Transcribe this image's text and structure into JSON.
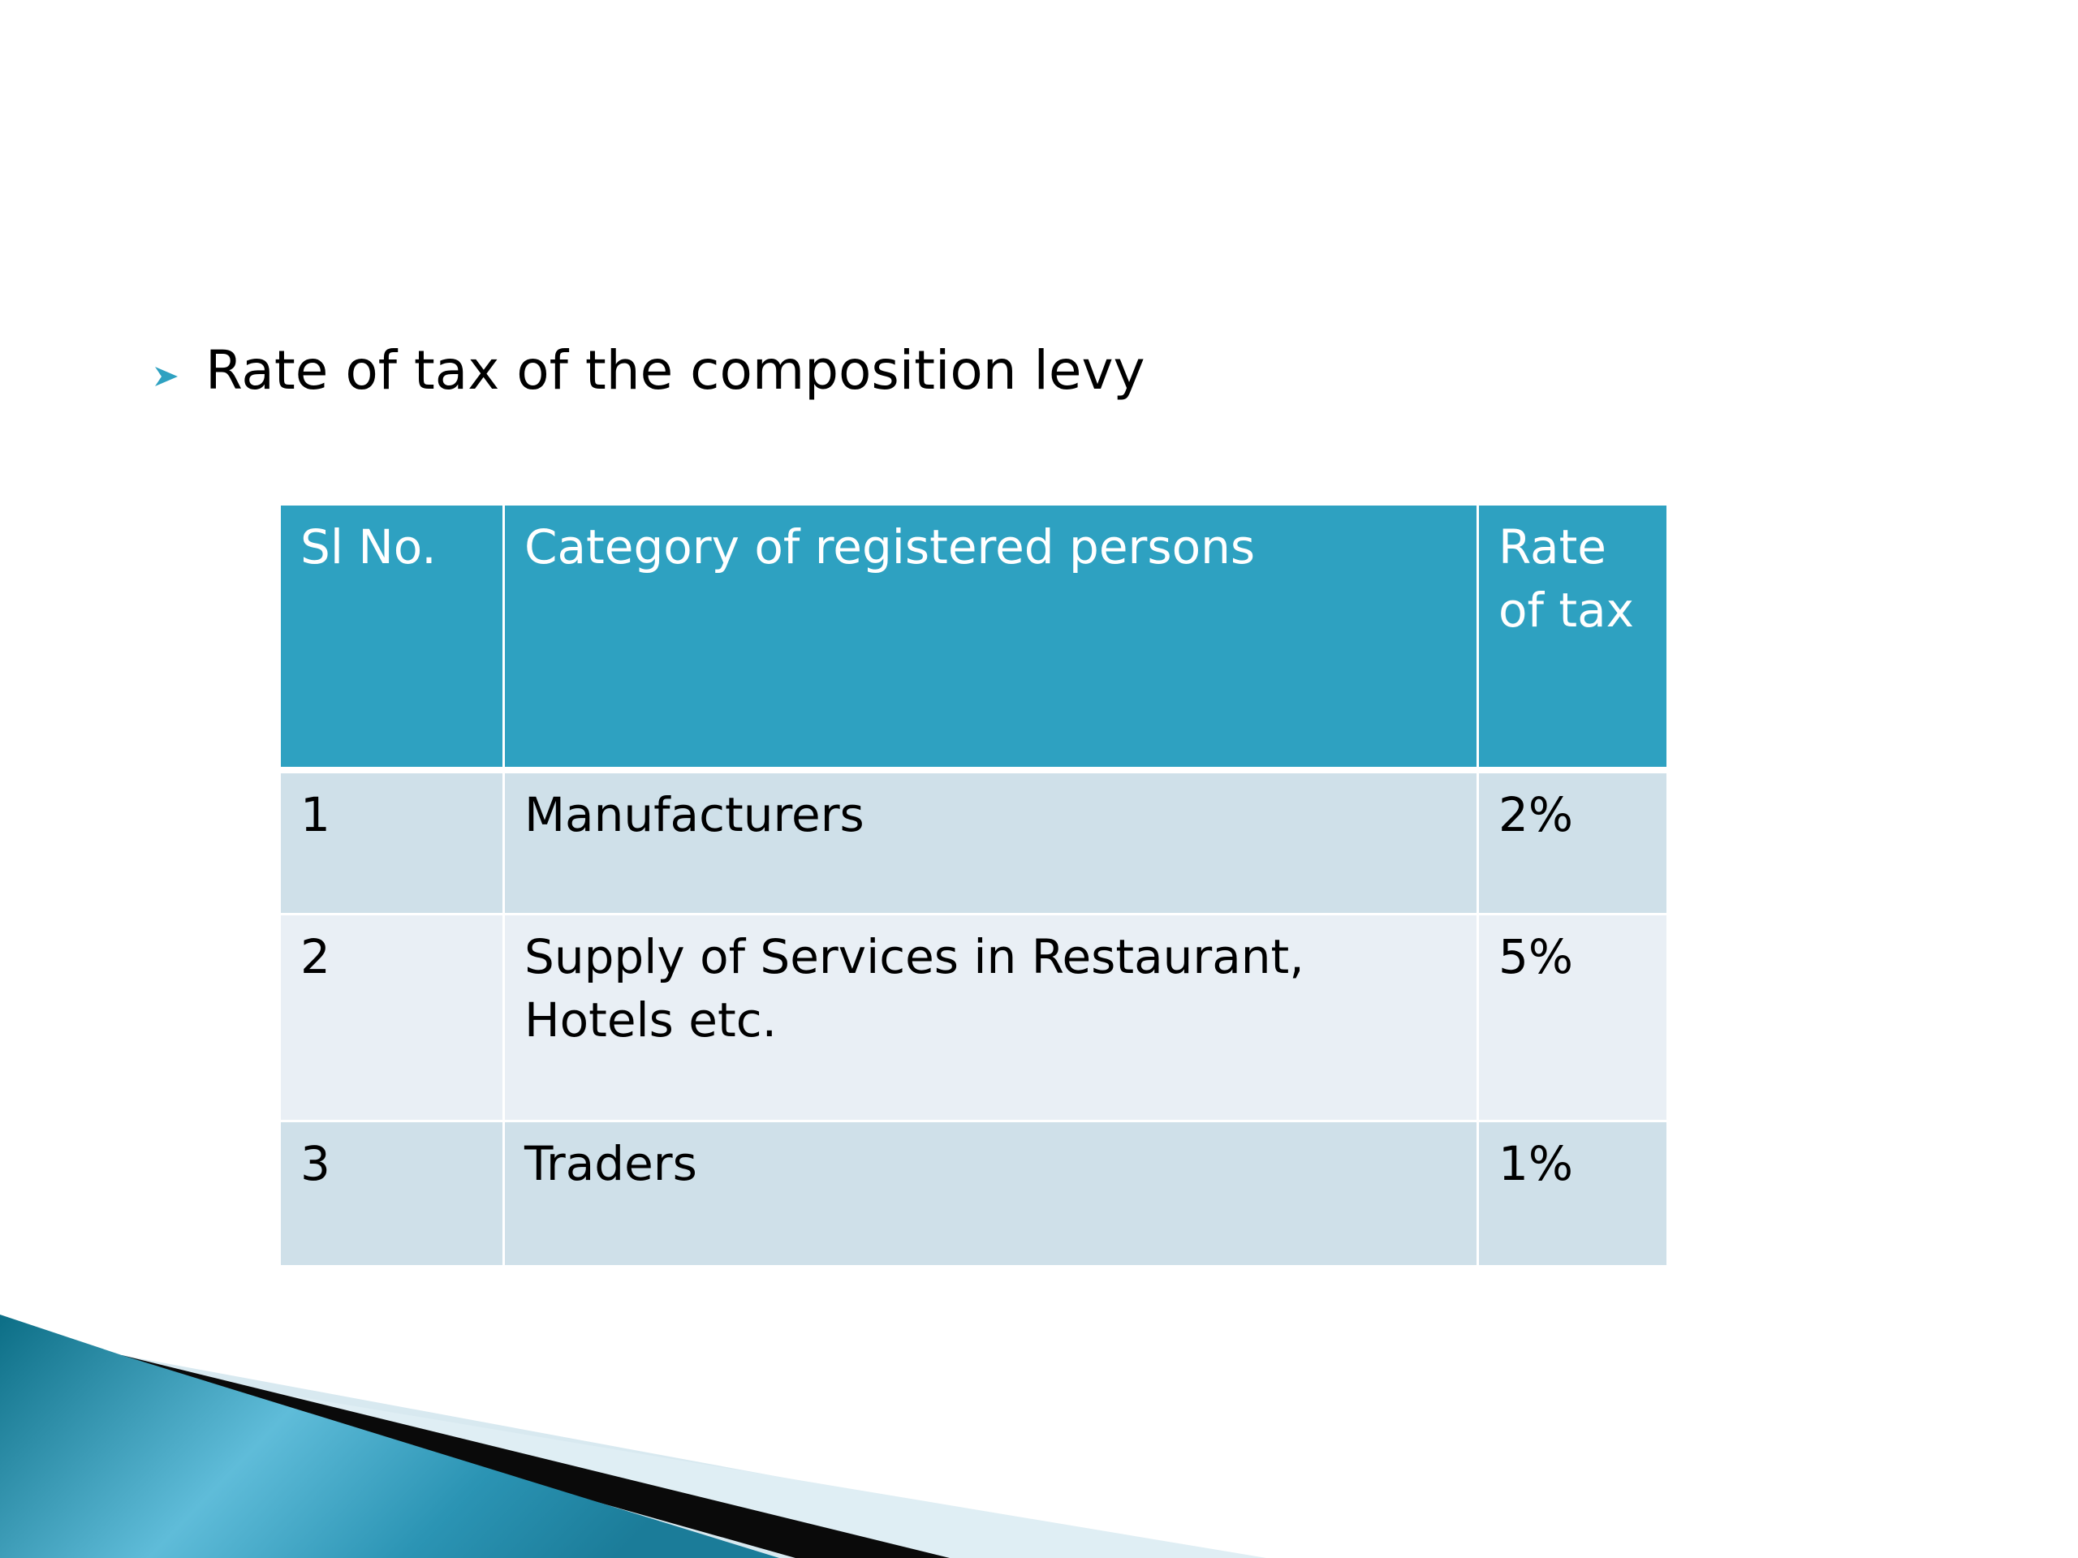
{
  "slide": {
    "bullet_icon": "arrow-bullet-icon",
    "heading": "Rate of tax of the composition levy"
  },
  "table": {
    "headers": [
      "Sl No.",
      "Category of registered persons",
      "Rate of tax"
    ],
    "rows": [
      [
        "1",
        "Manufacturers",
        "2%"
      ],
      [
        "2",
        "Supply of Services in Restaurant, Hotels etc.",
        "5%"
      ],
      [
        "3",
        "Traders",
        "1%"
      ]
    ]
  },
  "colors": {
    "header_fill": "#2ea1c1",
    "row_odd_fill": "#cfe0e9",
    "row_even_fill": "#e9eff5",
    "accent_dark": "#0e6f86"
  }
}
